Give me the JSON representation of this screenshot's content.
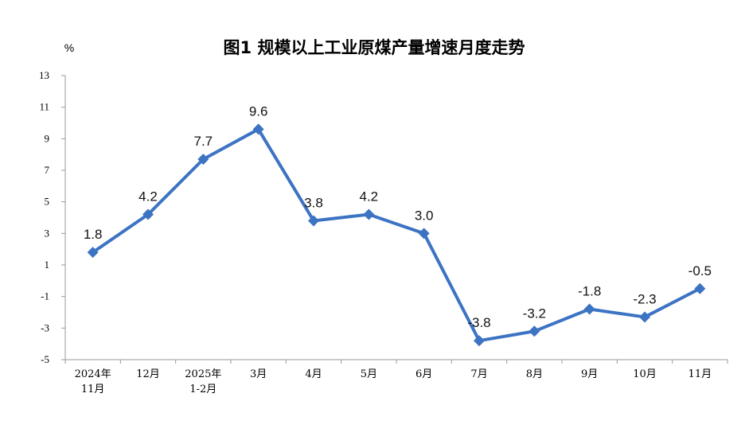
{
  "chart_data": {
    "type": "line",
    "title": "图1  规模以上工业原煤产量增速月度走势",
    "ylabel": "%",
    "xlabel": "",
    "ylim": [
      -5,
      13
    ],
    "yticks": [
      13,
      11,
      9,
      7,
      5,
      3,
      1,
      -1,
      -3,
      -5
    ],
    "categories": [
      [
        "2024年",
        "11月"
      ],
      [
        "12月"
      ],
      [
        "2025年",
        "1-2月"
      ],
      [
        "3月"
      ],
      [
        "4月"
      ],
      [
        "5月"
      ],
      [
        "6月"
      ],
      [
        "7月"
      ],
      [
        "8月"
      ],
      [
        "9月"
      ],
      [
        "10月"
      ],
      [
        "11月"
      ]
    ],
    "series": [
      {
        "values": [
          1.8,
          4.2,
          7.7,
          9.6,
          3.8,
          4.2,
          3.0,
          -3.8,
          -3.2,
          -1.8,
          -2.3,
          -0.5
        ],
        "labels": [
          "1.8",
          "4.2",
          "7.7",
          "9.6",
          "3.8",
          "4.2",
          "3.0",
          "-3.8",
          "-3.2",
          "-1.8",
          "-2.3",
          "-0.5"
        ],
        "color": "#3c73c3"
      }
    ],
    "grid": false,
    "legend": "none"
  }
}
